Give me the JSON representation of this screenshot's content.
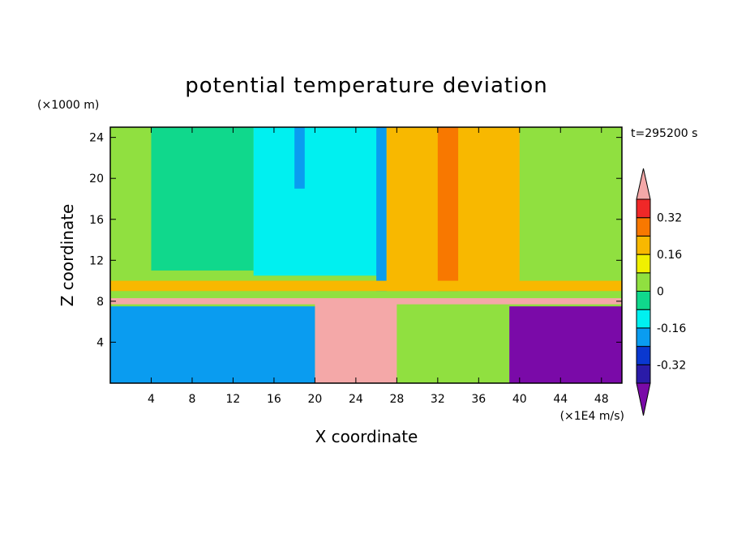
{
  "chart_data": {
    "type": "heatmap",
    "title": "potential temperature deviation",
    "xlabel": "X coordinate",
    "ylabel": "Z coordinate",
    "x_unit": "(×1E4 m/s)",
    "y_unit": "(×1000 m)",
    "time_label": "t=295200 s",
    "xlim": [
      0,
      50
    ],
    "ylim": [
      0,
      25
    ],
    "x_ticks": [
      4,
      8,
      12,
      16,
      20,
      24,
      28,
      32,
      36,
      40,
      44,
      48
    ],
    "y_ticks": [
      4,
      8,
      12,
      16,
      20,
      24
    ],
    "colorbar": {
      "levels": [
        -0.4,
        -0.32,
        -0.24,
        -0.16,
        -0.08,
        0,
        0.08,
        0.16,
        0.24,
        0.32,
        0.4
      ],
      "tick_labels": [
        "-0.32",
        "-0.16",
        "0",
        "0.16",
        "0.32"
      ],
      "tick_values": [
        -0.32,
        -0.16,
        0,
        0.16,
        0.32
      ],
      "colors": [
        "#7a0aa8",
        "#2a1ba8",
        "#0a38d0",
        "#0a9cf0",
        "#00f0f0",
        "#10d88c",
        "#90e040",
        "#f0f000",
        "#f8b800",
        "#f87800",
        "#f02828",
        "#f4a8a8"
      ],
      "extend": "both"
    },
    "field_patches": [
      {
        "x": [
          0,
          50
        ],
        "z": [
          0,
          25
        ],
        "value": 0.04
      },
      {
        "x": [
          4,
          14
        ],
        "z": [
          11,
          25
        ],
        "value": -0.04
      },
      {
        "x": [
          14,
          27
        ],
        "z": [
          10.5,
          25
        ],
        "value": -0.12
      },
      {
        "x": [
          18,
          19
        ],
        "z": [
          19,
          25
        ],
        "value": -0.2
      },
      {
        "x": [
          26,
          27
        ],
        "z": [
          9,
          25
        ],
        "value": -0.2
      },
      {
        "x": [
          27,
          40
        ],
        "z": [
          9,
          25
        ],
        "value": 0.2
      },
      {
        "x": [
          32,
          34
        ],
        "z": [
          9,
          25
        ],
        "value": 0.28
      },
      {
        "x": [
          0,
          50
        ],
        "z": [
          9,
          10
        ],
        "value": 0.2
      },
      {
        "x": [
          0,
          50
        ],
        "z": [
          7.7,
          8.3
        ],
        "value": 0.45
      },
      {
        "x": [
          20,
          28
        ],
        "z": [
          0,
          8
        ],
        "value": 0.45
      },
      {
        "x": [
          39,
          50
        ],
        "z": [
          0,
          7.5
        ],
        "value": -0.45
      },
      {
        "x": [
          0,
          20
        ],
        "z": [
          0,
          7.5
        ],
        "value": -0.2
      }
    ]
  }
}
